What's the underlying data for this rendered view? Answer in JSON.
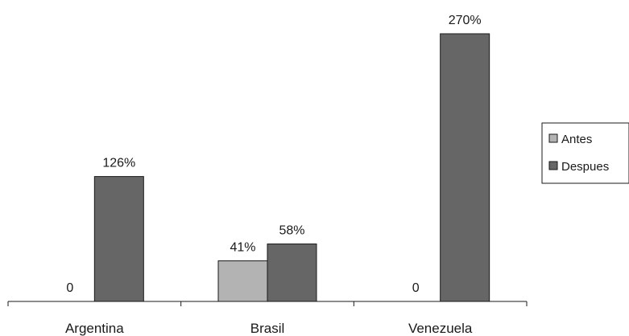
{
  "chart_data": {
    "type": "bar",
    "categories": [
      "Argentina",
      "Brasil",
      "Venezuela"
    ],
    "series": [
      {
        "name": "Antes",
        "values": [
          0,
          41,
          0
        ],
        "labels": [
          "0",
          "41%",
          "0"
        ],
        "color": "#b3b3b3"
      },
      {
        "name": "Despues",
        "values": [
          126,
          58,
          270
        ],
        "labels": [
          "126%",
          "58%",
          "270%"
        ],
        "color": "#666666"
      }
    ],
    "ylim": [
      0,
      270
    ],
    "grid": false,
    "legend": "right",
    "title": "",
    "xlabel": "",
    "ylabel": ""
  }
}
